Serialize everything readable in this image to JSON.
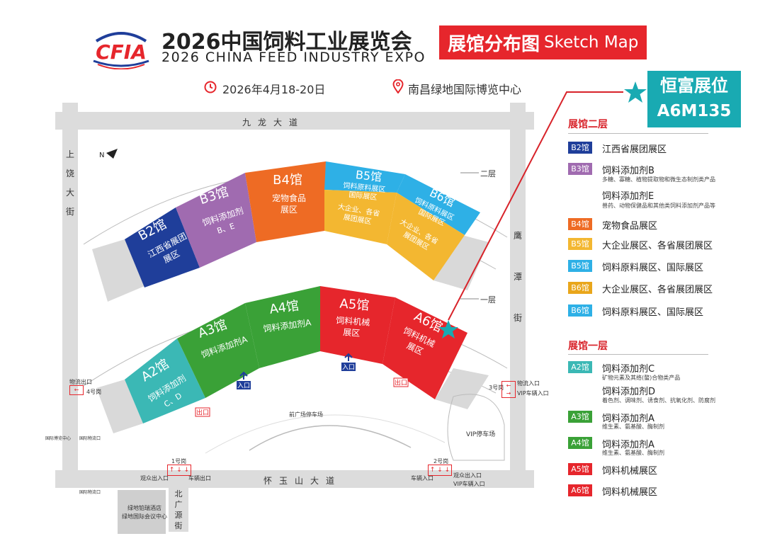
{
  "header": {
    "logo_text": "CFIA",
    "title_cn": "2026中国饲料工业展览会",
    "title_en": "2026 CHINA FEED INDUSTRY EXPO",
    "badge_cn": "展馆分布图",
    "badge_en": "Sketch Map",
    "date": "2026年4月18-20日",
    "venue": "南昌绿地国际博览中心"
  },
  "booth": {
    "label": "恒富展位",
    "code": "A6M135"
  },
  "roads": {
    "north": "九龙大道",
    "south": "怀玉山大道",
    "west": [
      "上",
      "饶",
      "大",
      "街"
    ],
    "east": [
      "鹰",
      "潭",
      "街"
    ],
    "south_branch": [
      "北",
      "广",
      "源",
      "街"
    ]
  },
  "map_labels": {
    "compass": "N",
    "floor2": "二层",
    "floor1": "一层",
    "front_parking": "前广场停车场",
    "vip_parking": "VIP停车场",
    "gate1": "1号岗",
    "gate2": "2号岗",
    "gate3": "3号岗",
    "gate4": "4号岗",
    "logistics_exit": "物流出口",
    "logistics_entry": "物流入口",
    "vip_entry_east": "VIP车辆入口",
    "visitor_exit_in_w": "观众出入口",
    "vehicle_exit": "车辆出口",
    "vehicle_entry": "车辆入口",
    "visitor_exit_in_e": "观众出入口",
    "vip_entry_south": "VIP车辆入口",
    "hotel_line1": "绿地铂瑞酒店",
    "hotel_line2": "绿地国际会议中心",
    "entry": "入口",
    "exit": "出口",
    "small_sign1": "国际博览中心",
    "small_sign2": "国际物流口",
    "small_sign3": "国际物流口"
  },
  "halls_upper": [
    {
      "id": "B2",
      "name": "B2馆",
      "lines": [
        "江西省展团",
        "展区"
      ],
      "color": "#1f3e9a"
    },
    {
      "id": "B3",
      "name": "B3馆",
      "lines": [
        "饲料添加剂",
        "B、E"
      ],
      "color": "#a06bb0"
    },
    {
      "id": "B4",
      "name": "B4馆",
      "lines": [
        "宠物食品",
        "展区"
      ],
      "color": "#ee6b24"
    },
    {
      "id": "B5",
      "name": "B5馆",
      "lines": [
        "饲料原料展区",
        "国际展区"
      ],
      "lines_low": [
        "大企业、各省",
        "展团展区"
      ],
      "color": "#2eb0e6",
      "color_low": "#f3b731"
    },
    {
      "id": "B6",
      "name": "B6馆",
      "lines": [
        "饲料原料展区",
        "国际展区"
      ],
      "lines_low": [
        "大企业、各省",
        "展团展区"
      ],
      "color": "#2eb0e6",
      "color_low": "#f3b731"
    }
  ],
  "halls_lower": [
    {
      "id": "A2",
      "name": "A2馆",
      "lines": [
        "饲料添加剂",
        "C、D"
      ],
      "color": "#3bb8b5"
    },
    {
      "id": "A3",
      "name": "A3馆",
      "lines": [
        "饲料添加剂A"
      ],
      "color": "#3aa137"
    },
    {
      "id": "A4",
      "name": "A4馆",
      "lines": [
        "饲料添加剂A"
      ],
      "color": "#3aa137"
    },
    {
      "id": "A5",
      "name": "A5馆",
      "lines": [
        "饲料机械",
        "展区"
      ],
      "color": "#e6262c"
    },
    {
      "id": "A6",
      "name": "A6馆",
      "lines": [
        "饲料机械",
        "展区"
      ],
      "color": "#e6262c"
    }
  ],
  "legend": {
    "floor2_title": "展馆二层",
    "floor1_title": "展馆一层",
    "floor2": [
      {
        "badge": "B2馆",
        "color": "#1f3e9a",
        "text": "江西省展团展区",
        "sub": ""
      },
      {
        "badge": "B3馆",
        "color": "#a06bb0",
        "text": "饲料添加剂B",
        "sub": "多糖、寡糖、植物提取物和微生态制剂类产品"
      },
      {
        "badge": "",
        "color": "",
        "text": "饲料添加剂E",
        "sub": "兽药、动物保健品和其他类饲料添加剂产品等"
      },
      {
        "badge": "B4馆",
        "color": "#ee6b24",
        "text": "宠物食品展区",
        "sub": ""
      },
      {
        "badge": "B5馆",
        "color": "#f3b731",
        "text": "大企业展区、各省展团展区",
        "sub": ""
      },
      {
        "badge": "B5馆",
        "color": "#2eb0e6",
        "text": "饲料原料展区、国际展区",
        "sub": ""
      },
      {
        "badge": "B6馆",
        "color": "#e9a61b",
        "text": "大企业展区、各省展团展区",
        "sub": ""
      },
      {
        "badge": "B6馆",
        "color": "#2eb0e6",
        "text": "饲料原料展区、国际展区",
        "sub": ""
      }
    ],
    "floor1": [
      {
        "badge": "A2馆",
        "color": "#3bb8b5",
        "text": "饲料添加剂C",
        "sub": "矿物元素及其络(螯)合物类产品"
      },
      {
        "badge": "",
        "color": "",
        "text": "饲料添加剂D",
        "sub": "着色剂、调味剂、诱食剂、抗氧化剂、防腐剂"
      },
      {
        "badge": "A3馆",
        "color": "#3aa137",
        "text": "饲料添加剂A",
        "sub": "维生素、氨基酸、酶制剂"
      },
      {
        "badge": "A4馆",
        "color": "#3aa137",
        "text": "饲料添加剂A",
        "sub": "维生素、氨基酸、酶制剂"
      },
      {
        "badge": "A5馆",
        "color": "#e6262c",
        "text": "饲料机械展区",
        "sub": ""
      },
      {
        "badge": "A6馆",
        "color": "#e6262c",
        "text": "饲料机械展区",
        "sub": ""
      }
    ]
  }
}
